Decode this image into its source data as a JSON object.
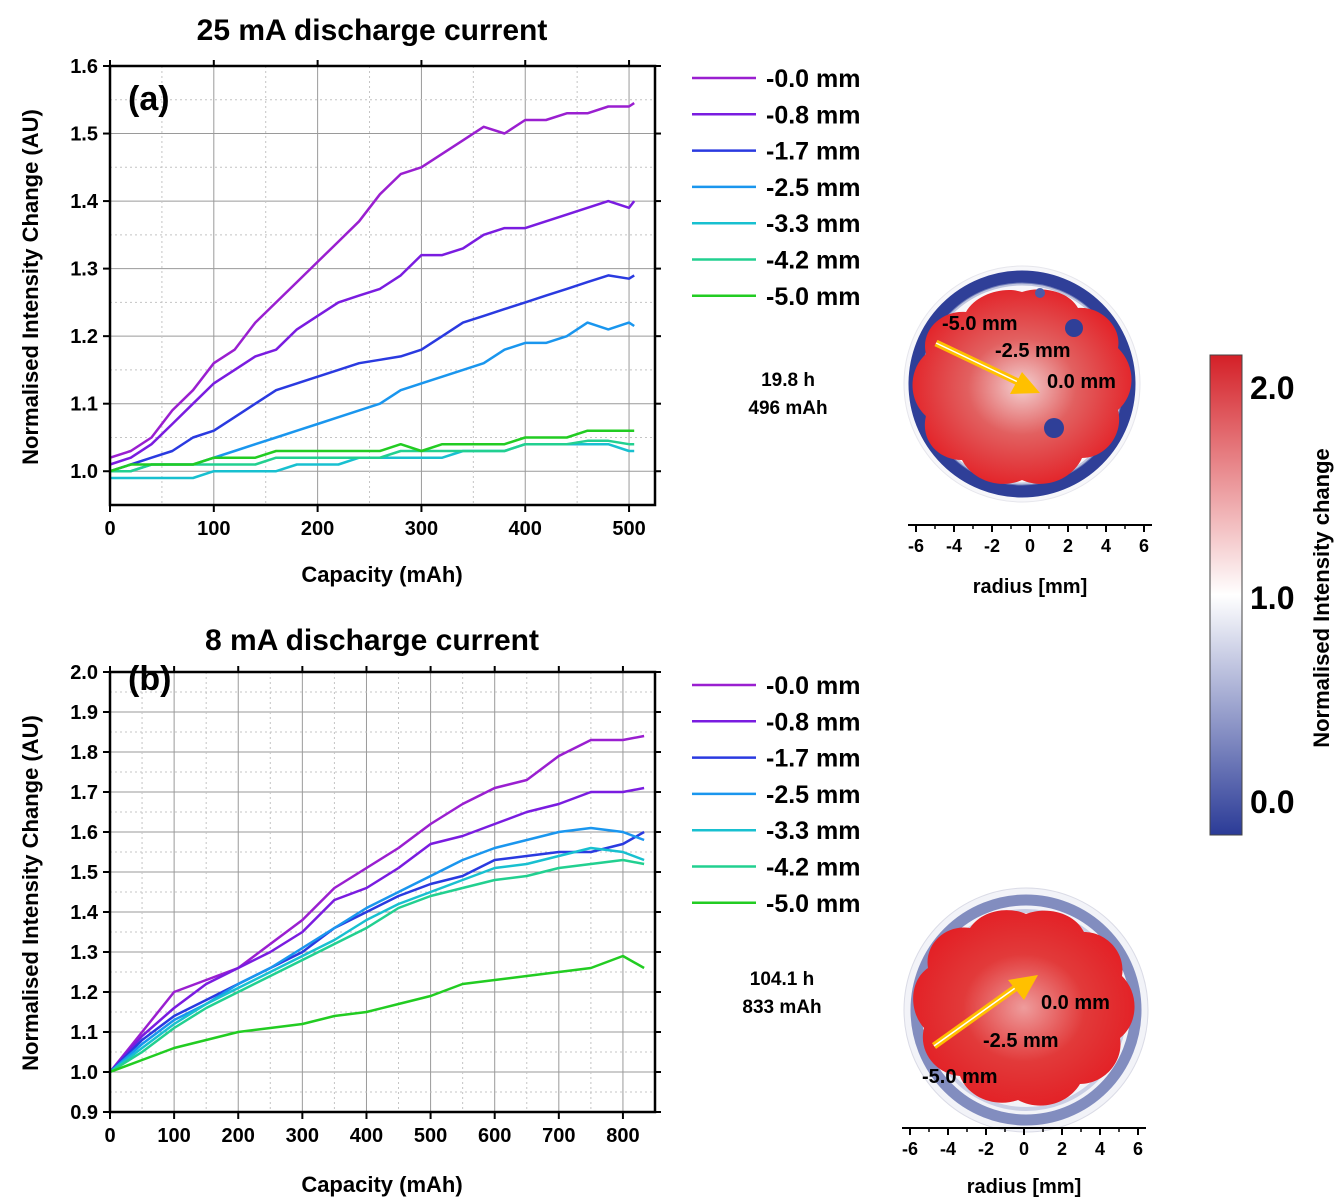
{
  "chart_data": [
    {
      "type": "line",
      "panel_label": "(a)",
      "title": "25 mA discharge current",
      "xlabel": "Capacity (mAh)",
      "ylabel": "Normalised Intensity Change (AU)",
      "xlim": [
        0,
        525
      ],
      "ylim": [
        0.95,
        1.6
      ],
      "xticks": [
        0,
        100,
        200,
        300,
        400,
        500
      ],
      "yticks": [
        1.0,
        1.1,
        1.2,
        1.3,
        1.4,
        1.5,
        1.6
      ],
      "xtick_labels": [
        "0",
        "100",
        "200",
        "300",
        "400",
        "500"
      ],
      "ytick_labels": [
        "1.0",
        "1.1",
        "1.2",
        "1.3",
        "1.4",
        "1.5",
        "1.6"
      ],
      "grid": true,
      "legend_position": "right",
      "series": [
        {
          "name": "-0.0 mm",
          "color": "#9a1fd0",
          "x": [
            0,
            20,
            40,
            60,
            80,
            100,
            120,
            140,
            160,
            180,
            200,
            220,
            240,
            260,
            280,
            300,
            320,
            340,
            360,
            380,
            400,
            420,
            440,
            460,
            480,
            500,
            505
          ],
          "y": [
            1.02,
            1.03,
            1.05,
            1.09,
            1.12,
            1.16,
            1.18,
            1.22,
            1.25,
            1.28,
            1.31,
            1.34,
            1.37,
            1.41,
            1.44,
            1.45,
            1.47,
            1.49,
            1.51,
            1.5,
            1.52,
            1.52,
            1.53,
            1.53,
            1.54,
            1.54,
            1.545
          ]
        },
        {
          "name": "-0.8 mm",
          "color": "#7a1ce0",
          "x": [
            0,
            20,
            40,
            60,
            80,
            100,
            120,
            140,
            160,
            180,
            200,
            220,
            240,
            260,
            280,
            300,
            320,
            340,
            360,
            380,
            400,
            420,
            440,
            460,
            480,
            500,
            505
          ],
          "y": [
            1.01,
            1.02,
            1.04,
            1.07,
            1.1,
            1.13,
            1.15,
            1.17,
            1.18,
            1.21,
            1.23,
            1.25,
            1.26,
            1.27,
            1.29,
            1.32,
            1.32,
            1.33,
            1.35,
            1.36,
            1.36,
            1.37,
            1.38,
            1.39,
            1.4,
            1.39,
            1.4
          ]
        },
        {
          "name": "-1.7 mm",
          "color": "#2a3ae0",
          "x": [
            0,
            20,
            40,
            60,
            80,
            100,
            120,
            140,
            160,
            180,
            200,
            220,
            240,
            260,
            280,
            300,
            320,
            340,
            360,
            380,
            400,
            420,
            440,
            460,
            480,
            500,
            505
          ],
          "y": [
            1.0,
            1.01,
            1.02,
            1.03,
            1.05,
            1.06,
            1.08,
            1.1,
            1.12,
            1.13,
            1.14,
            1.15,
            1.16,
            1.165,
            1.17,
            1.18,
            1.2,
            1.22,
            1.23,
            1.24,
            1.25,
            1.26,
            1.27,
            1.28,
            1.29,
            1.285,
            1.29
          ]
        },
        {
          "name": "-2.5 mm",
          "color": "#1a96ee",
          "x": [
            0,
            20,
            40,
            60,
            80,
            100,
            120,
            140,
            160,
            180,
            200,
            220,
            240,
            260,
            280,
            300,
            320,
            340,
            360,
            380,
            400,
            420,
            440,
            460,
            480,
            500,
            505
          ],
          "y": [
            1.0,
            1.0,
            1.01,
            1.01,
            1.01,
            1.02,
            1.03,
            1.04,
            1.05,
            1.06,
            1.07,
            1.08,
            1.09,
            1.1,
            1.12,
            1.13,
            1.14,
            1.15,
            1.16,
            1.18,
            1.19,
            1.19,
            1.2,
            1.22,
            1.21,
            1.22,
            1.215
          ]
        },
        {
          "name": "-3.3 mm",
          "color": "#18c0d0",
          "x": [
            0,
            20,
            40,
            60,
            80,
            100,
            120,
            140,
            160,
            180,
            200,
            220,
            240,
            260,
            280,
            300,
            320,
            340,
            360,
            380,
            400,
            420,
            440,
            460,
            480,
            500,
            505
          ],
          "y": [
            0.99,
            0.99,
            0.99,
            0.99,
            0.99,
            1.0,
            1.0,
            1.0,
            1.0,
            1.01,
            1.01,
            1.01,
            1.02,
            1.02,
            1.02,
            1.02,
            1.02,
            1.03,
            1.03,
            1.03,
            1.04,
            1.04,
            1.04,
            1.04,
            1.04,
            1.03,
            1.03
          ]
        },
        {
          "name": "-4.2 mm",
          "color": "#22d090",
          "x": [
            0,
            20,
            40,
            60,
            80,
            100,
            120,
            140,
            160,
            180,
            200,
            220,
            240,
            260,
            280,
            300,
            320,
            340,
            360,
            380,
            400,
            420,
            440,
            460,
            480,
            500,
            505
          ],
          "y": [
            1.0,
            1.0,
            1.01,
            1.01,
            1.01,
            1.01,
            1.01,
            1.01,
            1.02,
            1.02,
            1.02,
            1.02,
            1.02,
            1.02,
            1.03,
            1.03,
            1.03,
            1.03,
            1.03,
            1.03,
            1.04,
            1.04,
            1.04,
            1.045,
            1.045,
            1.04,
            1.04
          ]
        },
        {
          "name": "-5.0 mm",
          "color": "#22cc22",
          "x": [
            0,
            20,
            40,
            60,
            80,
            100,
            120,
            140,
            160,
            180,
            200,
            220,
            240,
            260,
            280,
            300,
            320,
            340,
            360,
            380,
            400,
            420,
            440,
            460,
            480,
            500,
            505
          ],
          "y": [
            1.0,
            1.01,
            1.01,
            1.01,
            1.01,
            1.02,
            1.02,
            1.02,
            1.03,
            1.03,
            1.03,
            1.03,
            1.03,
            1.03,
            1.04,
            1.03,
            1.04,
            1.04,
            1.04,
            1.04,
            1.05,
            1.05,
            1.05,
            1.06,
            1.06,
            1.06,
            1.06
          ]
        }
      ]
    },
    {
      "type": "line",
      "panel_label": "(b)",
      "title": "8 mA discharge current",
      "xlabel": "Capacity (mAh)",
      "ylabel": "Normalised Intensity Change (AU)",
      "xlim": [
        0,
        850
      ],
      "ylim": [
        0.9,
        2.0
      ],
      "xticks": [
        0,
        100,
        200,
        300,
        400,
        500,
        600,
        700,
        800
      ],
      "yticks": [
        0.9,
        1.0,
        1.1,
        1.2,
        1.3,
        1.4,
        1.5,
        1.6,
        1.7,
        1.8,
        1.9,
        2.0
      ],
      "xtick_labels": [
        "0",
        "100",
        "200",
        "300",
        "400",
        "500",
        "600",
        "700",
        "800"
      ],
      "ytick_labels": [
        "0.9",
        "1.0",
        "1.1",
        "1.2",
        "1.3",
        "1.4",
        "1.5",
        "1.6",
        "1.7",
        "1.8",
        "1.9",
        "2.0"
      ],
      "grid": true,
      "legend_position": "right",
      "series": [
        {
          "name": "-0.0 mm",
          "color": "#9a1fd0",
          "x": [
            0,
            50,
            100,
            150,
            200,
            250,
            300,
            350,
            400,
            450,
            500,
            550,
            600,
            650,
            700,
            750,
            800,
            833
          ],
          "y": [
            1.0,
            1.1,
            1.2,
            1.23,
            1.26,
            1.32,
            1.38,
            1.46,
            1.51,
            1.56,
            1.62,
            1.67,
            1.71,
            1.73,
            1.79,
            1.83,
            1.83,
            1.84
          ]
        },
        {
          "name": "-0.8 mm",
          "color": "#7a1ce0",
          "x": [
            0,
            50,
            100,
            150,
            200,
            250,
            300,
            350,
            400,
            450,
            500,
            550,
            600,
            650,
            700,
            750,
            800,
            833
          ],
          "y": [
            1.0,
            1.09,
            1.16,
            1.22,
            1.26,
            1.3,
            1.35,
            1.43,
            1.46,
            1.51,
            1.57,
            1.59,
            1.62,
            1.65,
            1.67,
            1.7,
            1.7,
            1.71
          ]
        },
        {
          "name": "-1.7 mm",
          "color": "#2a3ae0",
          "x": [
            0,
            50,
            100,
            150,
            200,
            250,
            300,
            350,
            400,
            450,
            500,
            550,
            600,
            650,
            700,
            750,
            800,
            833
          ],
          "y": [
            1.0,
            1.08,
            1.14,
            1.18,
            1.22,
            1.26,
            1.3,
            1.36,
            1.4,
            1.44,
            1.47,
            1.49,
            1.53,
            1.54,
            1.55,
            1.55,
            1.57,
            1.6
          ]
        },
        {
          "name": "-2.5 mm",
          "color": "#1a96ee",
          "x": [
            0,
            50,
            100,
            150,
            200,
            250,
            300,
            350,
            400,
            450,
            500,
            550,
            600,
            650,
            700,
            750,
            800,
            833
          ],
          "y": [
            1.0,
            1.07,
            1.13,
            1.17,
            1.22,
            1.26,
            1.31,
            1.36,
            1.41,
            1.45,
            1.49,
            1.53,
            1.56,
            1.58,
            1.6,
            1.61,
            1.6,
            1.58
          ]
        },
        {
          "name": "-3.3 mm",
          "color": "#18c0d0",
          "x": [
            0,
            50,
            100,
            150,
            200,
            250,
            300,
            350,
            400,
            450,
            500,
            550,
            600,
            650,
            700,
            750,
            800,
            833
          ],
          "y": [
            1.0,
            1.06,
            1.12,
            1.17,
            1.21,
            1.25,
            1.29,
            1.33,
            1.38,
            1.42,
            1.45,
            1.48,
            1.51,
            1.52,
            1.54,
            1.56,
            1.55,
            1.53
          ]
        },
        {
          "name": "-4.2 mm",
          "color": "#22d090",
          "x": [
            0,
            50,
            100,
            150,
            200,
            250,
            300,
            350,
            400,
            450,
            500,
            550,
            600,
            650,
            700,
            750,
            800,
            833
          ],
          "y": [
            1.0,
            1.05,
            1.11,
            1.16,
            1.2,
            1.24,
            1.28,
            1.32,
            1.36,
            1.41,
            1.44,
            1.46,
            1.48,
            1.49,
            1.51,
            1.52,
            1.53,
            1.52
          ]
        },
        {
          "name": "-5.0 mm",
          "color": "#22cc22",
          "x": [
            0,
            50,
            100,
            150,
            200,
            250,
            300,
            350,
            400,
            450,
            500,
            550,
            600,
            650,
            700,
            750,
            800,
            833
          ],
          "y": [
            1.0,
            1.03,
            1.06,
            1.08,
            1.1,
            1.11,
            1.12,
            1.14,
            1.15,
            1.17,
            1.19,
            1.22,
            1.23,
            1.24,
            1.25,
            1.26,
            1.29,
            1.26
          ]
        }
      ]
    }
  ],
  "maps": [
    {
      "time": "19.8 h",
      "capacity": "496 mAh",
      "labels": [
        "-5.0 mm",
        "-2.5 mm",
        "0.0 mm"
      ],
      "xlabel": "radius [mm]",
      "ticks": [
        "-6",
        "-4",
        "-2",
        "0",
        "2",
        "4",
        "6"
      ],
      "arrow_color": "#ffc000"
    },
    {
      "time": "104.1 h",
      "capacity": "833 mAh",
      "labels": [
        "0.0 mm",
        "-2.5 mm",
        "-5.0 mm"
      ],
      "xlabel": "radius [mm]",
      "ticks": [
        "-6",
        "-4",
        "-2",
        "0",
        "2",
        "4",
        "6"
      ],
      "arrow_color": "#ffc000"
    }
  ],
  "colorbar": {
    "label": "Normalised Intensity change",
    "ticks": [
      "2.0",
      "1.0",
      "0.0"
    ],
    "colors": [
      "#2b3b97",
      "#ffffff",
      "#d42027"
    ]
  }
}
